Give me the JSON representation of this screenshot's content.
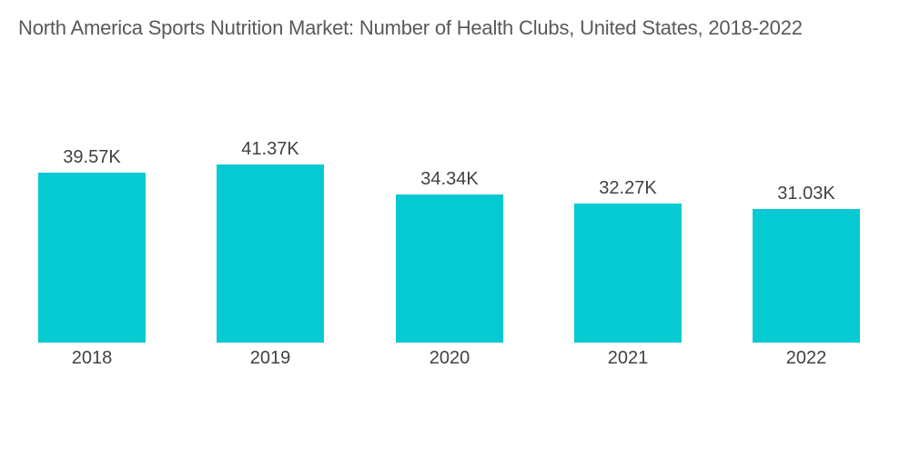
{
  "title": "North America Sports Nutrition Market: Number of Health Clubs, United States, 2018-2022",
  "colors": {
    "bar": "#06CAD2",
    "title_text": "#59595B",
    "label_text": "#424244",
    "background": "#FFFFFF"
  },
  "chart_data": {
    "type": "bar",
    "title": "North America Sports Nutrition Market: Number of Health Clubs, United States, 2018-2022",
    "categories": [
      "2018",
      "2019",
      "2020",
      "2021",
      "2022"
    ],
    "values": [
      39.57,
      41.37,
      34.34,
      32.27,
      31.03
    ],
    "value_labels": [
      "39.57K",
      "41.37K",
      "34.34K",
      "32.27K",
      "31.03K"
    ],
    "unit": "K",
    "xlabel": "",
    "ylabel": "Number of Health Clubs",
    "ylim": [
      0,
      41.37
    ],
    "grid": false,
    "legend": "none",
    "axes_hidden": true,
    "bar_color": "#06CAD2",
    "data_labels_position": "above-bar"
  }
}
